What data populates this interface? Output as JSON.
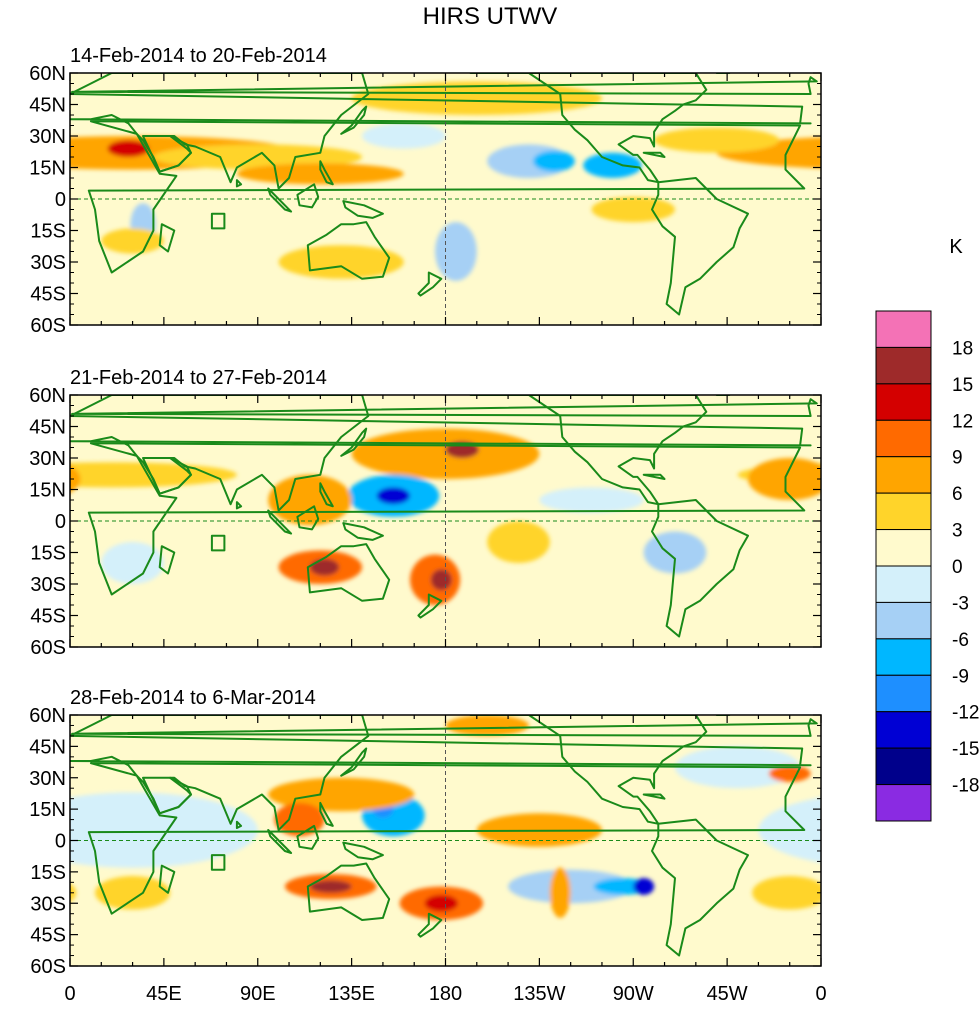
{
  "title": "HIRS UTWV",
  "colorbar": {
    "unit": "K",
    "levels": [
      "18",
      "15",
      "12",
      "9",
      "6",
      "3",
      "0",
      "-3",
      "-6",
      "-9",
      "-12",
      "-15",
      "-18"
    ],
    "colors": [
      "#f472b6",
      "#9e2a2a",
      "#d40000",
      "#ff6a00",
      "#ffa500",
      "#ffd42a",
      "#fffacd",
      "#d4f0fa",
      "#a6d0f5",
      "#00b7ff",
      "#1e8fff",
      "#0000d4",
      "#00008b",
      "#8a2be2"
    ]
  },
  "map": {
    "land_outline_color": "#1a8a1a",
    "equator_line_color": "#1a8a1a",
    "dateline_color": "#555555",
    "y_tick_labels": [
      "60N",
      "45N",
      "30N",
      "15N",
      "0",
      "15S",
      "30S",
      "45S",
      "60S"
    ],
    "x_tick_labels": [
      "0",
      "45E",
      "90E",
      "135E",
      "180",
      "135W",
      "90W",
      "45W",
      "0"
    ]
  },
  "panels": [
    {
      "period": "14-Feb-2014 to 20-Feb-2014",
      "anomalies": [
        {
          "lon": 30,
          "lat": 22,
          "rlon": 80,
          "rlat": 8,
          "k": 6
        },
        {
          "lon": 28,
          "lat": 24,
          "rlon": 10,
          "rlat": 4,
          "k": 12
        },
        {
          "lon": 90,
          "lat": 20,
          "rlon": 50,
          "rlat": 6,
          "k": 3
        },
        {
          "lon": 120,
          "lat": 12,
          "rlon": 40,
          "rlat": 5,
          "k": 6
        },
        {
          "lon": 195,
          "lat": 48,
          "rlon": 60,
          "rlat": 8,
          "k": 3
        },
        {
          "lon": 220,
          "lat": 18,
          "rlon": 20,
          "rlat": 8,
          "k": -6
        },
        {
          "lon": 260,
          "lat": 16,
          "rlon": 14,
          "rlat": 6,
          "k": -9
        },
        {
          "lon": 232,
          "lat": 18,
          "rlon": 10,
          "rlat": 5,
          "k": -9
        },
        {
          "lon": 35,
          "lat": -12,
          "rlon": 6,
          "rlat": 10,
          "k": -6
        },
        {
          "lon": 185,
          "lat": -25,
          "rlon": 10,
          "rlat": 14,
          "k": -6
        },
        {
          "lon": 130,
          "lat": -30,
          "rlon": 30,
          "rlat": 8,
          "k": 3
        },
        {
          "lon": 30,
          "lat": -20,
          "rlon": 15,
          "rlat": 6,
          "k": 3
        },
        {
          "lon": 310,
          "lat": 28,
          "rlon": 30,
          "rlat": 6,
          "k": 3
        },
        {
          "lon": 270,
          "lat": -5,
          "rlon": 20,
          "rlat": 6,
          "k": 3
        },
        {
          "lon": 160,
          "lat": 30,
          "rlon": 20,
          "rlat": 6,
          "k": -3
        }
      ]
    },
    {
      "period": "21-Feb-2014 to 27-Feb-2014",
      "anomalies": [
        {
          "lon": 180,
          "lat": 32,
          "rlon": 45,
          "rlat": 12,
          "k": 6
        },
        {
          "lon": 188,
          "lat": 34,
          "rlon": 8,
          "rlat": 4,
          "k": 15
        },
        {
          "lon": 155,
          "lat": 12,
          "rlon": 22,
          "rlat": 10,
          "k": -9
        },
        {
          "lon": 155,
          "lat": 12,
          "rlon": 8,
          "rlat": 4,
          "k": -15
        },
        {
          "lon": 115,
          "lat": 10,
          "rlon": 20,
          "rlat": 12,
          "k": 6
        },
        {
          "lon": 120,
          "lat": -22,
          "rlon": 20,
          "rlat": 8,
          "k": 9
        },
        {
          "lon": 122,
          "lat": -22,
          "rlon": 7,
          "rlat": 4,
          "k": 15
        },
        {
          "lon": 175,
          "lat": -28,
          "rlon": 12,
          "rlat": 12,
          "k": 9
        },
        {
          "lon": 178,
          "lat": -28,
          "rlon": 5,
          "rlat": 5,
          "k": 15
        },
        {
          "lon": 290,
          "lat": -15,
          "rlon": 15,
          "rlat": 10,
          "k": -6
        },
        {
          "lon": 20,
          "lat": 22,
          "rlon": 60,
          "rlat": 6,
          "k": 3
        },
        {
          "lon": 345,
          "lat": 20,
          "rlon": 20,
          "rlat": 10,
          "k": 6
        },
        {
          "lon": 30,
          "lat": -20,
          "rlon": 15,
          "rlat": 10,
          "k": -3
        },
        {
          "lon": 250,
          "lat": 10,
          "rlon": 25,
          "rlat": 6,
          "k": -3
        },
        {
          "lon": 215,
          "lat": -10,
          "rlon": 15,
          "rlat": 10,
          "k": 3
        }
      ]
    },
    {
      "period": "28-Feb-2014 to 6-Mar-2014",
      "anomalies": [
        {
          "lon": 155,
          "lat": 12,
          "rlon": 15,
          "rlat": 10,
          "k": -9
        },
        {
          "lon": 150,
          "lat": 15,
          "rlon": 5,
          "rlat": 4,
          "k": -12
        },
        {
          "lon": 130,
          "lat": 22,
          "rlon": 35,
          "rlat": 8,
          "k": 6
        },
        {
          "lon": 110,
          "lat": 10,
          "rlon": 12,
          "rlat": 8,
          "k": 9
        },
        {
          "lon": 125,
          "lat": -22,
          "rlon": 22,
          "rlat": 6,
          "k": 9
        },
        {
          "lon": 125,
          "lat": -22,
          "rlon": 10,
          "rlat": 3,
          "k": 15
        },
        {
          "lon": 178,
          "lat": -30,
          "rlon": 20,
          "rlat": 8,
          "k": 9
        },
        {
          "lon": 178,
          "lat": -30,
          "rlon": 8,
          "rlat": 4,
          "k": 12
        },
        {
          "lon": 240,
          "lat": -22,
          "rlon": 30,
          "rlat": 8,
          "k": -6
        },
        {
          "lon": 265,
          "lat": -22,
          "rlon": 14,
          "rlat": 4,
          "k": -9
        },
        {
          "lon": 275,
          "lat": -22,
          "rlon": 5,
          "rlat": 4,
          "k": -15
        },
        {
          "lon": 235,
          "lat": -25,
          "rlon": 5,
          "rlat": 12,
          "k": 6
        },
        {
          "lon": 225,
          "lat": 5,
          "rlon": 30,
          "rlat": 8,
          "k": 6
        },
        {
          "lon": 30,
          "lat": 5,
          "rlon": 60,
          "rlat": 18,
          "k": -3
        },
        {
          "lon": 30,
          "lat": -25,
          "rlon": 18,
          "rlat": 8,
          "k": 3
        },
        {
          "lon": 345,
          "lat": -25,
          "rlon": 18,
          "rlat": 8,
          "k": 3
        },
        {
          "lon": 320,
          "lat": 35,
          "rlon": 30,
          "rlat": 10,
          "k": -3
        },
        {
          "lon": 345,
          "lat": 32,
          "rlon": 10,
          "rlat": 4,
          "k": 9
        },
        {
          "lon": 200,
          "lat": 55,
          "rlon": 20,
          "rlat": 5,
          "k": 6
        }
      ]
    }
  ]
}
